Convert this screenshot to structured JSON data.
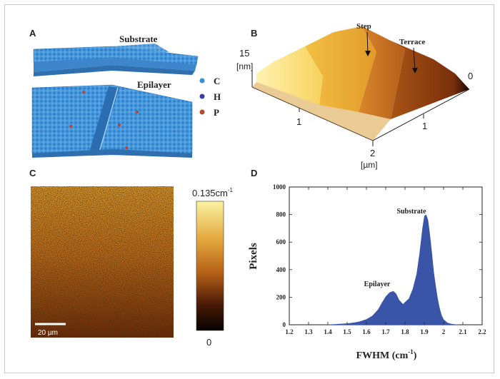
{
  "panels": {
    "a": {
      "label": "A",
      "substrate": "Substrate",
      "epilayer": "Epilayer",
      "legend": [
        {
          "symbol": "C",
          "color": "#3a8fd8"
        },
        {
          "symbol": "H",
          "color": "#3a3f9a"
        },
        {
          "symbol": "P",
          "color": "#b34a2a"
        }
      ]
    },
    "b": {
      "label": "B",
      "height_value": "15",
      "height_unit": "[nm]",
      "zero": "0",
      "step": "Step",
      "terrace": "Terrace",
      "tick_1a": "1",
      "tick_1b": "1",
      "tick_2": "2",
      "axis_unit": "[µm]"
    },
    "c": {
      "label": "C",
      "scale_bar": "20 µm",
      "cbar_max": "0.135cm",
      "cbar_exp": "-1",
      "cbar_min": "0"
    },
    "d": {
      "label": "D",
      "substrate": "Substrate",
      "epilayer": "Epilayer"
    }
  },
  "chart_data": {
    "type": "area",
    "title": "",
    "xlabel": "FWHM (cm-1)",
    "xlabel_base": "FWHM (cm",
    "xlabel_exp": "-1",
    "xlabel_close": ")",
    "ylabel": "Pixels",
    "xlim": [
      1.2,
      2.2
    ],
    "ylim": [
      0,
      1000
    ],
    "xticks": [
      "1.2",
      "1.3",
      "1.4",
      "1.5",
      "1.6",
      "1.7",
      "1.8",
      "1.9",
      "2",
      "2.1",
      "2.2"
    ],
    "yticks": [
      "0",
      "200",
      "400",
      "600",
      "800",
      "1000"
    ],
    "fill_color": "#3a55a8",
    "series": [
      {
        "name": "Pixels",
        "x": [
          1.4,
          1.43,
          1.46,
          1.5,
          1.53,
          1.56,
          1.6,
          1.63,
          1.66,
          1.68,
          1.7,
          1.72,
          1.74,
          1.755,
          1.77,
          1.79,
          1.8,
          1.82,
          1.84,
          1.86,
          1.875,
          1.89,
          1.9,
          1.91,
          1.92,
          1.93,
          1.94,
          1.95,
          1.96,
          1.97,
          1.98,
          1.99,
          2.0,
          2.02,
          2.04,
          2.06,
          2.08
        ],
        "y": [
          2,
          4,
          6,
          10,
          15,
          22,
          40,
          65,
          110,
          160,
          205,
          235,
          245,
          225,
          180,
          150,
          165,
          190,
          260,
          370,
          520,
          700,
          790,
          800,
          760,
          650,
          520,
          380,
          280,
          190,
          120,
          70,
          40,
          15,
          6,
          3,
          1
        ]
      }
    ]
  }
}
